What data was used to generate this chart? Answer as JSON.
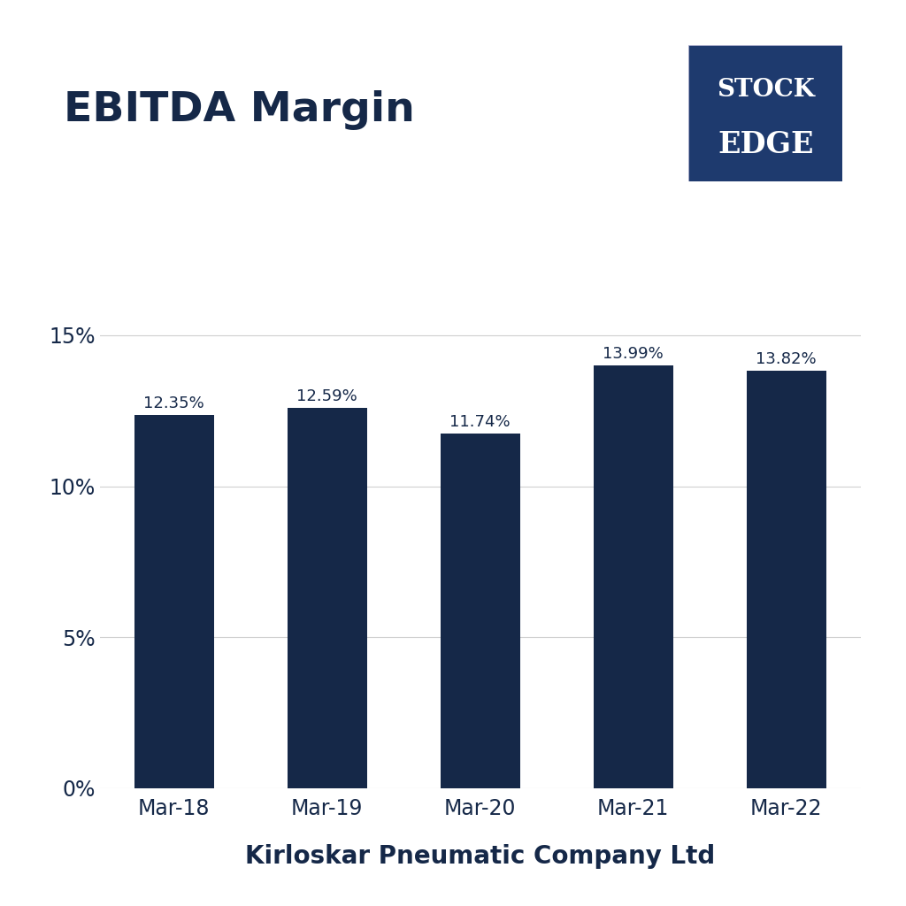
{
  "title": "EBITDA Margin",
  "xlabel": "Kirloskar Pneumatic Company Ltd",
  "categories": [
    "Mar-18",
    "Mar-19",
    "Mar-20",
    "Mar-21",
    "Mar-22"
  ],
  "values": [
    12.35,
    12.59,
    11.74,
    13.99,
    13.82
  ],
  "labels": [
    "12.35%",
    "12.59%",
    "11.74%",
    "13.99%",
    "13.82%"
  ],
  "bar_color": "#152848",
  "background_color": "#ffffff",
  "title_color": "#152848",
  "label_color": "#152848",
  "axis_color": "#152848",
  "tick_color": "#152848",
  "grid_color": "#d0d0d0",
  "yticks": [
    0,
    5,
    10,
    15
  ],
  "ylim": [
    0,
    16.5
  ],
  "title_fontsize": 34,
  "xlabel_fontsize": 20,
  "tick_fontsize": 17,
  "label_fontsize": 13,
  "logo_bg_color": "#1e3a6e",
  "logo_text1": "STOCK",
  "logo_text2": "EDGE",
  "logo_text_color": "#ffffff"
}
